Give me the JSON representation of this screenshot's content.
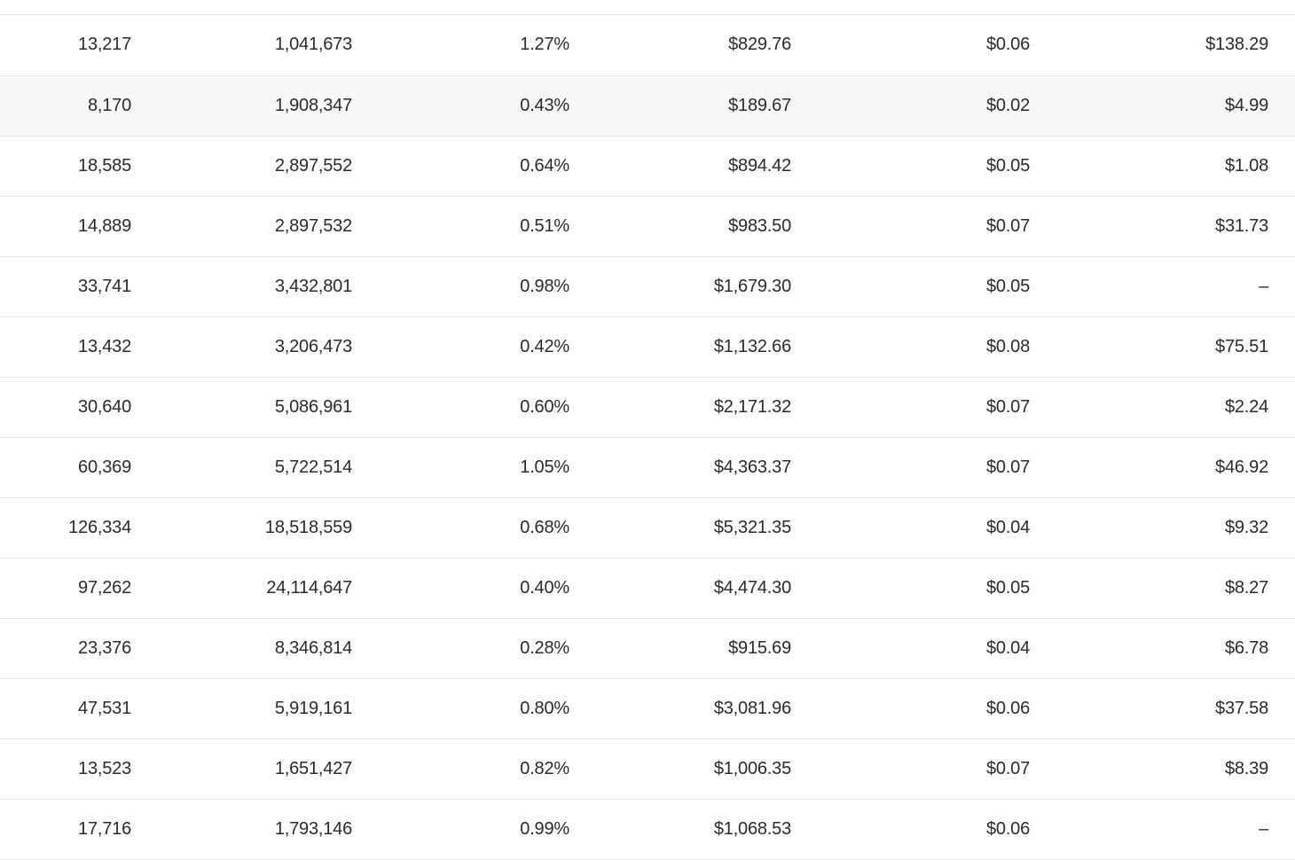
{
  "table": {
    "rows": [
      {
        "c1": "13,217",
        "c2": "1,041,673",
        "c3": "1.27%",
        "c4": "$829.76",
        "c5": "$0.06",
        "c6": "$138.29"
      },
      {
        "c1": "8,170",
        "c2": "1,908,347",
        "c3": "0.43%",
        "c4": "$189.67",
        "c5": "$0.02",
        "c6": "$4.99"
      },
      {
        "c1": "18,585",
        "c2": "2,897,552",
        "c3": "0.64%",
        "c4": "$894.42",
        "c5": "$0.05",
        "c6": "$1.08"
      },
      {
        "c1": "14,889",
        "c2": "2,897,532",
        "c3": "0.51%",
        "c4": "$983.50",
        "c5": "$0.07",
        "c6": "$31.73"
      },
      {
        "c1": "33,741",
        "c2": "3,432,801",
        "c3": "0.98%",
        "c4": "$1,679.30",
        "c5": "$0.05",
        "c6": "–"
      },
      {
        "c1": "13,432",
        "c2": "3,206,473",
        "c3": "0.42%",
        "c4": "$1,132.66",
        "c5": "$0.08",
        "c6": "$75.51"
      },
      {
        "c1": "30,640",
        "c2": "5,086,961",
        "c3": "0.60%",
        "c4": "$2,171.32",
        "c5": "$0.07",
        "c6": "$2.24"
      },
      {
        "c1": "60,369",
        "c2": "5,722,514",
        "c3": "1.05%",
        "c4": "$4,363.37",
        "c5": "$0.07",
        "c6": "$46.92"
      },
      {
        "c1": "126,334",
        "c2": "18,518,559",
        "c3": "0.68%",
        "c4": "$5,321.35",
        "c5": "$0.04",
        "c6": "$9.32"
      },
      {
        "c1": "97,262",
        "c2": "24,114,647",
        "c3": "0.40%",
        "c4": "$4,474.30",
        "c5": "$0.05",
        "c6": "$8.27"
      },
      {
        "c1": "23,376",
        "c2": "8,346,814",
        "c3": "0.28%",
        "c4": "$915.69",
        "c5": "$0.04",
        "c6": "$6.78"
      },
      {
        "c1": "47,531",
        "c2": "5,919,161",
        "c3": "0.80%",
        "c4": "$3,081.96",
        "c5": "$0.06",
        "c6": "$37.58"
      },
      {
        "c1": "13,523",
        "c2": "1,651,427",
        "c3": "0.82%",
        "c4": "$1,006.35",
        "c5": "$0.07",
        "c6": "$8.39"
      },
      {
        "c1": "17,716",
        "c2": "1,793,146",
        "c3": "0.99%",
        "c4": "$1,068.53",
        "c5": "$0.06",
        "c6": "–"
      }
    ]
  },
  "colors": {
    "hover_row_background": "#f7f7f7",
    "border": "#e4e4e4",
    "text": "#2b2b2b"
  }
}
